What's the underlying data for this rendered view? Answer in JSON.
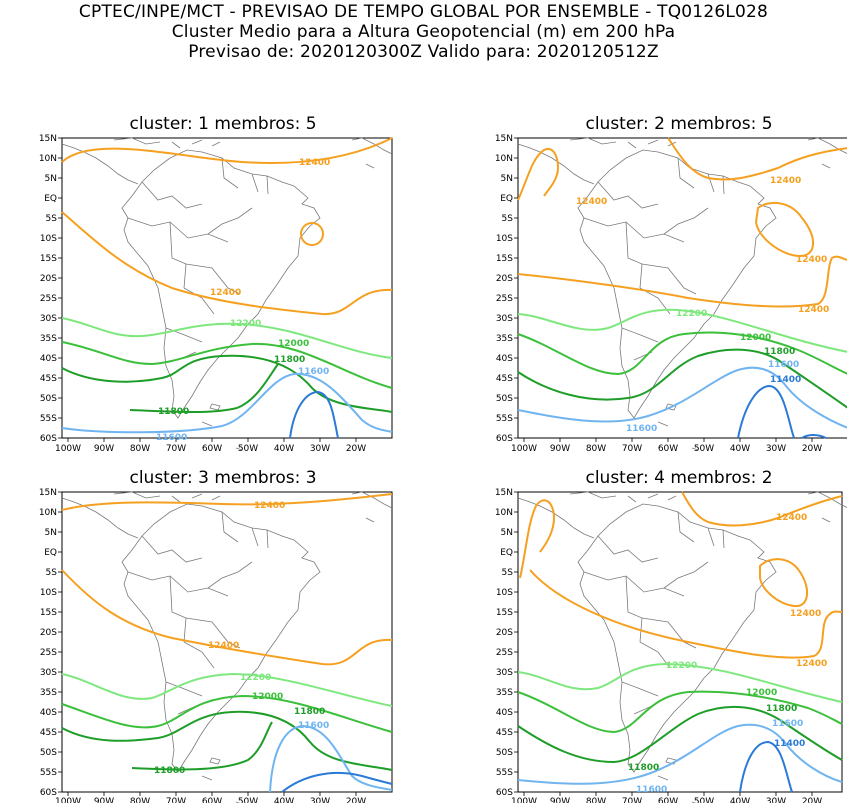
{
  "header": {
    "line1": "CPTEC/INPE/MCT - PREVISAO DE TEMPO GLOBAL POR ENSEMBLE - TQ0126L028",
    "line2": "Cluster Medio para a Altura Geopotencial (m) em 200 hPa",
    "line3": "Previsao de: 2020120300Z   Valido para: 2020120512Z"
  },
  "axes": {
    "lat_labels": [
      "15N",
      "10N",
      "5N",
      "EQ",
      "5S",
      "10S",
      "15S",
      "20S",
      "25S",
      "30S",
      "35S",
      "40S",
      "45S",
      "50S",
      "55S",
      "60S"
    ],
    "lon_labels": [
      "100W",
      "90W",
      "80W",
      "70W",
      "60W",
      "50W",
      "40W",
      "30W",
      "20W"
    ]
  },
  "colors": {
    "c12400": "#f5a020",
    "c12200": "#7ee87e",
    "c12000": "#3cc03c",
    "c11800": "#1e9e28",
    "c11600": "#70b4f0",
    "c11400": "#2a7ad6",
    "land": "#7a7a7a"
  },
  "panels": [
    {
      "title": "cluster: 1   membros: 5",
      "labels": {
        "l12400a": "12400",
        "l12400b": "12400",
        "l12200": "12200",
        "l12000": "12000",
        "l11800a": "11800",
        "l11800b": "11800",
        "l11600a": "11600",
        "l11600b": "11600"
      }
    },
    {
      "title": "cluster: 2   membros: 5",
      "labels": {
        "l12400a": "12400",
        "l12400b": "12400",
        "l12400c": "12400",
        "l12400d": "12400",
        "l12200": "12200",
        "l12000": "12000",
        "l11800": "11800",
        "l11600a": "11600",
        "l11600b": "11600",
        "l11400": "11400"
      }
    },
    {
      "title": "cluster: 3   membros: 3",
      "labels": {
        "l12400a": "12400",
        "l12400b": "12400",
        "l12200": "12200",
        "l12000": "12000",
        "l11800a": "11800",
        "l11800b": "11800",
        "l11600": "11600"
      }
    },
    {
      "title": "cluster: 4   membros: 2",
      "labels": {
        "l12400a": "12400",
        "l12400b": "12400",
        "l12400c": "12400",
        "l12200": "12200",
        "l12000": "12000",
        "l11800a": "11800",
        "l11800b": "11800",
        "l11600a": "11600",
        "l11600b": "11600",
        "l11400": "11400"
      }
    }
  ]
}
